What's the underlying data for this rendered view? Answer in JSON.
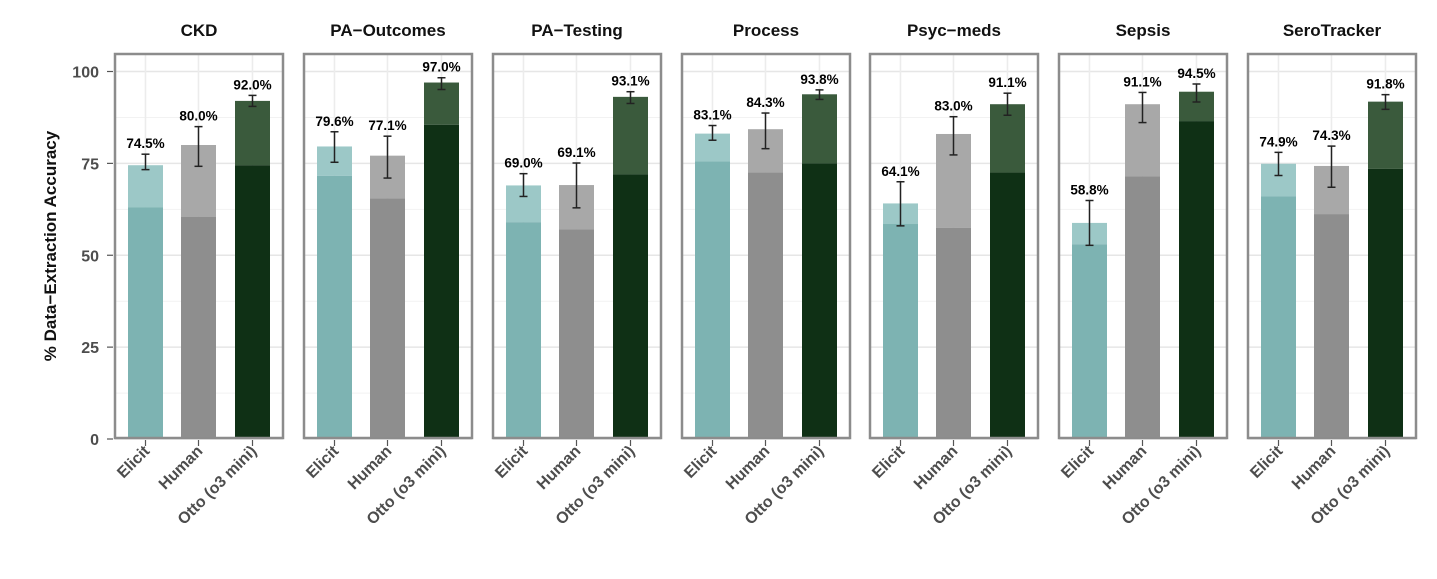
{
  "chart_data": {
    "type": "bar",
    "ylabel": "% Data−Extraction Accuracy",
    "ylim": [
      0,
      105
    ],
    "yticks": [
      "0",
      "25",
      "50",
      "75",
      "100"
    ],
    "grid": true,
    "categories": [
      "Elicit",
      "Human",
      "Otto (o3 mini)"
    ],
    "colors": {
      "Elicit": {
        "solid": "#7db3b2",
        "light": "#9cc8c7"
      },
      "Human": {
        "solid": "#8e8e8e",
        "light": "#a8a8a8"
      },
      "Otto (o3 mini)": {
        "solid": "#0f3015",
        "light": "#3a5a3c"
      }
    },
    "panels": [
      {
        "title": "CKD",
        "values": [
          74.5,
          80.0,
          92.0
        ],
        "solid": [
          63.0,
          60.5,
          74.5
        ],
        "err_low": [
          73.3,
          74.2,
          90.5
        ],
        "err_high": [
          77.5,
          85.0,
          93.5
        ],
        "labels": [
          "74.5%",
          "80.0%",
          "92.0%"
        ]
      },
      {
        "title": "PA−Outcomes",
        "values": [
          79.6,
          77.1,
          97.0
        ],
        "solid": [
          71.6,
          65.5,
          85.5
        ],
        "err_low": [
          75.3,
          71.0,
          95.1
        ],
        "err_high": [
          83.6,
          82.4,
          98.3
        ],
        "labels": [
          "79.6%",
          "77.1%",
          "97.0%"
        ]
      },
      {
        "title": "PA−Testing",
        "values": [
          69.0,
          69.1,
          93.1
        ],
        "solid": [
          59.0,
          57.0,
          72.0
        ],
        "err_low": [
          66.0,
          62.9,
          91.3
        ],
        "err_high": [
          72.2,
          75.1,
          94.5
        ],
        "labels": [
          "69.0%",
          "69.1%",
          "93.1%"
        ]
      },
      {
        "title": "Process",
        "values": [
          83.1,
          84.3,
          93.8
        ],
        "solid": [
          75.5,
          72.5,
          75.0
        ],
        "err_low": [
          81.3,
          79.0,
          92.4
        ],
        "err_high": [
          85.3,
          88.7,
          95.0
        ],
        "labels": [
          "83.1%",
          "84.3%",
          "93.8%"
        ]
      },
      {
        "title": "Psyc−meds",
        "values": [
          64.1,
          83.0,
          91.1
        ],
        "solid": [
          58.5,
          57.5,
          72.5
        ],
        "err_low": [
          58.0,
          77.3,
          88.1
        ],
        "err_high": [
          70.0,
          87.7,
          94.1
        ],
        "labels": [
          "64.1%",
          "83.0%",
          "91.1%"
        ]
      },
      {
        "title": "Sepsis",
        "values": [
          58.8,
          91.1,
          94.5
        ],
        "solid": [
          53.0,
          71.5,
          86.5
        ],
        "err_low": [
          52.7,
          86.1,
          91.7
        ],
        "err_high": [
          64.9,
          94.3,
          96.6
        ],
        "labels": [
          "58.8%",
          "91.1%",
          "94.5%"
        ]
      },
      {
        "title": "SeroTracker",
        "values": [
          74.9,
          74.3,
          91.8
        ],
        "solid": [
          66.0,
          61.2,
          73.5
        ],
        "err_low": [
          71.7,
          68.5,
          89.7
        ],
        "err_high": [
          78.0,
          79.7,
          93.7
        ],
        "labels": [
          "74.9%",
          "74.3%",
          "91.8%"
        ]
      }
    ]
  }
}
